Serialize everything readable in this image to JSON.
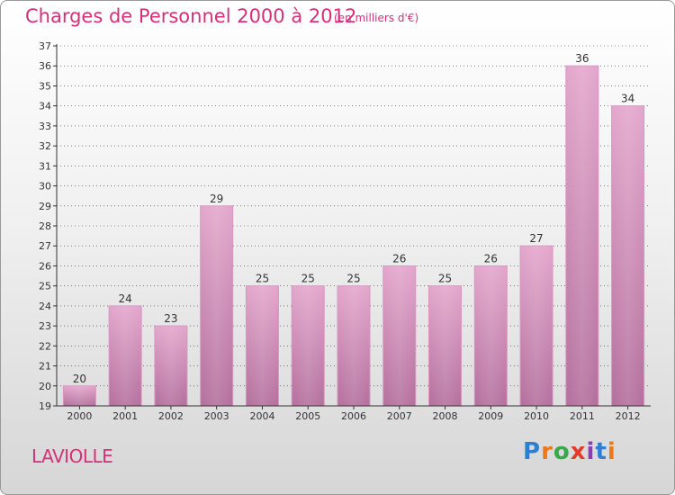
{
  "header": {
    "title": "Charges de Personnel 2000 à 2012",
    "subtitle": "(en milliers d'€)"
  },
  "footer": {
    "commune": "LAVIOLLE",
    "logo_letters": [
      "P",
      "r",
      "o",
      "x",
      "i",
      "t",
      "i"
    ],
    "logo_colors": [
      "#2f7fd1",
      "#e87a1d",
      "#3aa84a",
      "#e23b2e",
      "#8a3fb0",
      "#2f7fd1",
      "#e87a1d"
    ]
  },
  "colors": {
    "bar_top": "#e3a6cc",
    "bar_bottom": "#b36f9c",
    "bar_edge": "#d996c2",
    "axis": "#333333",
    "grid": "#333333",
    "accent": "#d6307a"
  },
  "chart_data": {
    "type": "bar",
    "title": "Charges de Personnel 2000 à 2012",
    "subtitle": "(en milliers d'€)",
    "categories": [
      "2000",
      "2001",
      "2002",
      "2003",
      "2004",
      "2005",
      "2006",
      "2007",
      "2008",
      "2009",
      "2010",
      "2011",
      "2012"
    ],
    "values": [
      20,
      24,
      23,
      29,
      25,
      25,
      25,
      26,
      25,
      26,
      27,
      36,
      34
    ],
    "ylim": [
      19,
      37
    ],
    "yticks": [
      19,
      20,
      21,
      22,
      23,
      24,
      25,
      26,
      27,
      28,
      29,
      30,
      31,
      32,
      33,
      34,
      35,
      36,
      37
    ],
    "grid": true,
    "legend": "none"
  }
}
